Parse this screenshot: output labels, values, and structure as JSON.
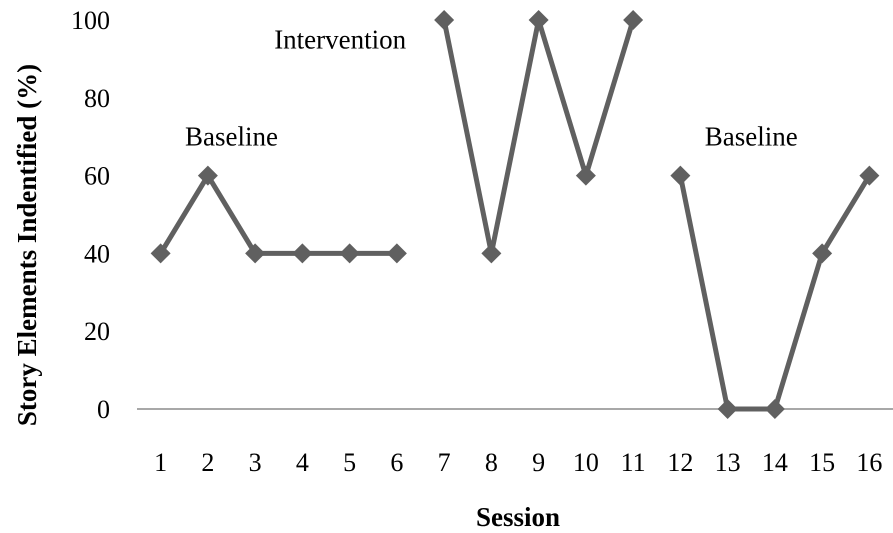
{
  "chart_data": {
    "type": "line",
    "xlabel": "Session",
    "ylabel": "Story Elements Indentified (%)",
    "ylim": [
      0,
      100
    ],
    "yticks": [
      0,
      20,
      40,
      60,
      80,
      100
    ],
    "categories": [
      "1",
      "2",
      "3",
      "4",
      "5",
      "6",
      "7",
      "8",
      "9",
      "10",
      "11",
      "12",
      "13",
      "14",
      "15",
      "16"
    ],
    "grid": false,
    "legend": "none",
    "series": [
      {
        "x": [
          1,
          2,
          3,
          4,
          5,
          6
        ],
        "values": [
          40,
          60,
          40,
          40,
          40,
          40
        ]
      },
      {
        "x": [
          7,
          8,
          9,
          10,
          11
        ],
        "values": [
          100,
          40,
          100,
          60,
          100
        ]
      },
      {
        "x": [
          12,
          13,
          14,
          15,
          16
        ],
        "values": [
          60,
          0,
          0,
          40,
          60
        ]
      }
    ],
    "annotations": [
      {
        "text": "Baseline",
        "x": 2.5,
        "y": 70
      },
      {
        "text": "Intervention",
        "x": 4.8,
        "y": 95
      },
      {
        "text": "Baseline",
        "x": 13.5,
        "y": 70
      }
    ],
    "colors": {
      "series": "#606060",
      "axis": "#8c8c8c"
    },
    "marker": "diamond"
  }
}
